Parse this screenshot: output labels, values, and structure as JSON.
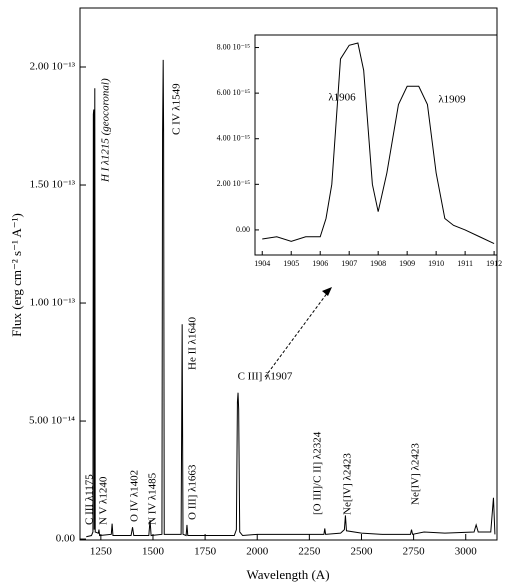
{
  "chart_data": [
    {
      "type": "line",
      "x_label": "Wavelength (A)",
      "y_label": "Flux (erg cm⁻² s⁻¹ A⁻¹)",
      "color": "#000000",
      "xlim": [
        1150,
        3150
      ],
      "ylim": [
        -4e-16,
        2.25e-13
      ],
      "xticks": [
        1250,
        1500,
        1750,
        2000,
        2250,
        2500,
        2750,
        3000
      ],
      "yticks": [
        {
          "value": 0,
          "label": "0.00"
        },
        {
          "value": 5e-14,
          "label": "5.00 10⁻¹⁴"
        },
        {
          "value": 1e-13,
          "label": "1.00 10⁻¹³"
        },
        {
          "value": 1.5e-13,
          "label": "1.50 10⁻¹³"
        },
        {
          "value": 2e-13,
          "label": "2.00 10⁻¹³"
        }
      ],
      "x": [
        1180,
        1205,
        1212,
        1214,
        1216,
        1218,
        1221,
        1223,
        1238,
        1241,
        1244,
        1300,
        1304,
        1308,
        1395,
        1402,
        1408,
        1480,
        1486,
        1491,
        1543,
        1546,
        1549,
        1551,
        1554,
        1635,
        1640,
        1644,
        1659,
        1663,
        1667,
        1890,
        1900,
        1905,
        1908,
        1911,
        1916,
        1930,
        2000,
        2200,
        2320,
        2324,
        2328,
        2400,
        2418,
        2423,
        2428,
        2500,
        2600,
        2735,
        2740,
        2745,
        2800,
        2900,
        3040,
        3050,
        3060,
        3120,
        3133,
        3140
      ],
      "values": [
        1e-15,
        1.5e-15,
        3e-15,
        1.8e-13,
        1.82e-13,
        4e-15,
        1.91e-13,
        3e-15,
        2.5e-15,
        4e-15,
        1.5e-15,
        2e-15,
        6.5e-15,
        1.5e-15,
        1.5e-15,
        5e-15,
        1.5e-15,
        1.5e-15,
        8e-15,
        1.5e-15,
        2e-15,
        1.72e-13,
        2.03e-13,
        1.72e-13,
        2e-15,
        2e-15,
        9.1e-14,
        2e-15,
        1.5e-15,
        6e-15,
        1.5e-15,
        1.5e-15,
        4e-15,
        5.8e-14,
        6.2e-14,
        5.5e-14,
        3e-15,
        1.5e-15,
        2e-15,
        2e-15,
        2e-15,
        4.5e-15,
        2e-15,
        2.5e-15,
        4e-15,
        1e-14,
        3.5e-15,
        2.5e-15,
        2e-15,
        2e-15,
        4e-15,
        2e-15,
        3e-15,
        2.5e-15,
        3e-15,
        6e-15,
        3e-15,
        3e-15,
        1.75e-14,
        2e-15
      ],
      "annotations": [
        "H I λ1215 (geocoronal)",
        "C IV λ1549",
        "He II λ1640",
        "C III  λ1175",
        "N V λ1240",
        "O IV λ1402",
        "N IV λ1485",
        "O III] λ1663",
        "[O III]/C II] λ2324",
        "Ne[IV] λ2423",
        "Ne[IV] λ2423",
        "C III] λ1907"
      ]
    },
    {
      "type": "line",
      "color": "#000000",
      "xlim": [
        1903.75,
        1912.1
      ],
      "ylim": [
        -1.1e-15,
        8.55e-15
      ],
      "xticks": [
        1904,
        1905,
        1906,
        1907,
        1908,
        1909,
        1910,
        1911,
        1912
      ],
      "yticks": [
        {
          "value": 0,
          "label": "0.00"
        },
        {
          "value": 2e-15,
          "label": "2.00 10⁻¹⁵"
        },
        {
          "value": 4e-15,
          "label": "4.00 10⁻¹⁵"
        },
        {
          "value": 6e-15,
          "label": "6.00 10⁻¹⁵"
        },
        {
          "value": 8e-15,
          "label": "8.00 10⁻¹⁵"
        }
      ],
      "x": [
        1904,
        1904.5,
        1905,
        1905.5,
        1906,
        1906.2,
        1906.4,
        1906.7,
        1907,
        1907.3,
        1907.5,
        1907.8,
        1908,
        1908.3,
        1908.7,
        1909,
        1909.4,
        1909.7,
        1910,
        1910.3,
        1910.6,
        1911,
        1911.5,
        1912
      ],
      "values": [
        -4e-16,
        -3e-16,
        -5e-16,
        -3e-16,
        -3e-16,
        5e-16,
        2e-15,
        7.5e-15,
        8.1e-15,
        8.2e-15,
        7e-15,
        2e-15,
        8e-16,
        2.5e-15,
        5.5e-15,
        6.3e-15,
        6.3e-15,
        5.5e-15,
        2.5e-15,
        5e-16,
        2e-16,
        0,
        -3e-16,
        -6e-16
      ],
      "annotations": [
        "λ1906",
        "λ1909"
      ]
    }
  ]
}
